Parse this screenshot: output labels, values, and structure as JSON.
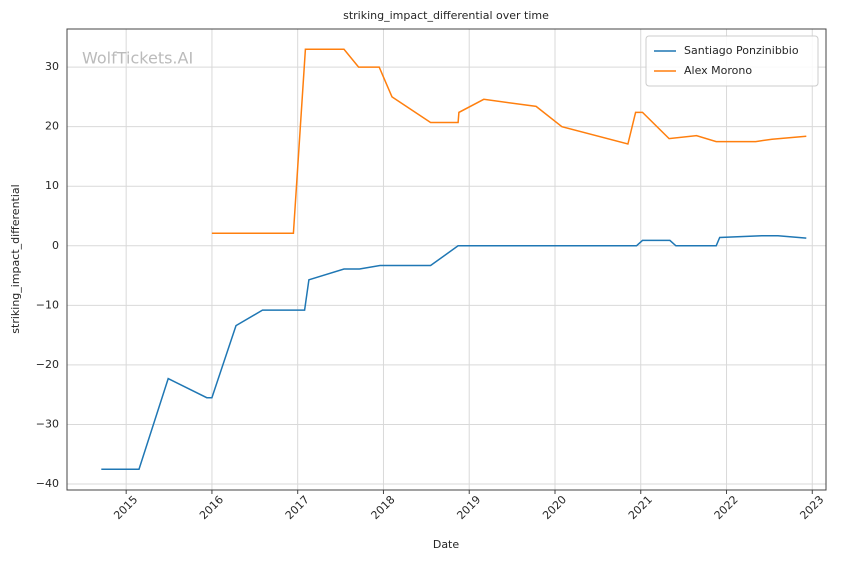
{
  "chart_data": {
    "type": "line",
    "title": "striking_impact_differential over time",
    "xlabel": "Date",
    "ylabel": "striking_impact_differential",
    "watermark": "WolfTickets.AI",
    "xlim": [
      2014.31,
      2023.16
    ],
    "xticks": [
      2015,
      2016,
      2017,
      2018,
      2019,
      2020,
      2021,
      2022,
      2023
    ],
    "ylim": [
      -41.0,
      36.4
    ],
    "yticks": [
      {
        "value": -40,
        "label": "−40"
      },
      {
        "value": -30,
        "label": "−30"
      },
      {
        "value": -20,
        "label": "−20"
      },
      {
        "value": -10,
        "label": "−10"
      },
      0,
      10,
      20,
      30
    ],
    "grid": true,
    "legend": "upper right",
    "series": [
      {
        "name": "Santiago Ponzinibbio",
        "color": "#1f77b4",
        "x": [
          2014.71,
          2015.15,
          2015.49,
          2015.94,
          2016.0,
          2016.28,
          2016.59,
          2017.08,
          2017.13,
          2017.54,
          2017.72,
          2017.96,
          2018.55,
          2018.87,
          2020.95,
          2021.02,
          2021.34,
          2021.41,
          2021.88,
          2021.92,
          2022.41,
          2022.6,
          2022.93
        ],
        "values": [
          -37.5,
          -37.5,
          -22.3,
          -25.5,
          -25.5,
          -13.4,
          -10.8,
          -10.8,
          -5.7,
          -3.9,
          -3.9,
          -3.3,
          -3.3,
          0,
          0,
          0.9,
          0.9,
          0,
          0,
          1.4,
          1.7,
          1.7,
          1.3
        ]
      },
      {
        "name": "Alex Morono",
        "color": "#ff7f0e",
        "x": [
          2016.0,
          2016.95,
          2017.09,
          2017.54,
          2017.71,
          2017.95,
          2018.1,
          2018.55,
          2018.87,
          2018.88,
          2019.17,
          2019.78,
          2020.08,
          2020.85,
          2020.94,
          2021.02,
          2021.33,
          2021.65,
          2021.88,
          2022.34,
          2022.53,
          2022.93
        ],
        "values": [
          2.1,
          2.1,
          33,
          33,
          30,
          30,
          25,
          20.7,
          20.7,
          22.4,
          24.6,
          23.4,
          20,
          17.1,
          22.4,
          22.4,
          18,
          18.5,
          17.5,
          17.5,
          17.9,
          18.4
        ]
      }
    ]
  }
}
